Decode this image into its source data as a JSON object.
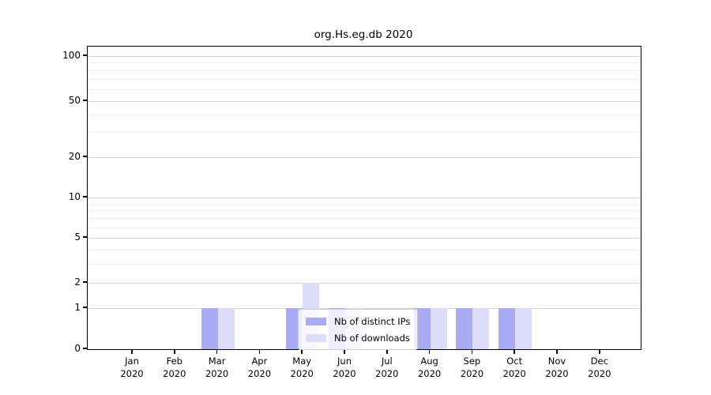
{
  "chart_data": {
    "type": "bar",
    "title": "org.Hs.eg.db 2020",
    "categories": [
      "Jan 2020",
      "Feb 2020",
      "Mar 2020",
      "Apr 2020",
      "May 2020",
      "Jun 2020",
      "Jul 2020",
      "Aug 2020",
      "Sep 2020",
      "Oct 2020",
      "Nov 2020",
      "Dec 2020"
    ],
    "x_tick_months": [
      "Jan",
      "Feb",
      "Mar",
      "Apr",
      "May",
      "Jun",
      "Jul",
      "Aug",
      "Sep",
      "Oct",
      "Nov",
      "Dec"
    ],
    "x_tick_year": "2020",
    "series": [
      {
        "name": "Nb of distinct IPs",
        "color": "#a9abf5",
        "values": [
          0,
          0,
          1,
          0,
          1,
          1,
          0,
          1,
          1,
          1,
          0,
          0
        ]
      },
      {
        "name": "Nb of downloads",
        "color": "#dbddfa",
        "values": [
          0,
          0,
          1,
          0,
          2,
          1,
          0,
          1,
          1,
          1,
          0,
          0
        ]
      }
    ],
    "yscale": "log1p",
    "ylim": [
      0,
      116
    ],
    "y_ticks": [
      0,
      1,
      2,
      5,
      10,
      20,
      50,
      100
    ],
    "y_minor_ticks": [
      3,
      4,
      6,
      7,
      8,
      9,
      30,
      40,
      60,
      70,
      80,
      90
    ],
    "grid": true,
    "legend_position": "inside lower-center"
  },
  "legend": {
    "items": [
      {
        "label": "Nb of distinct IPs",
        "color": "#a9abf5"
      },
      {
        "label": "Nb of downloads",
        "color": "#dbddfa"
      }
    ]
  },
  "colors": {
    "distinct_ips_bar": "#a9abf5",
    "downloads_bar": "#dbddfa",
    "grid_major": "#d2d2d2",
    "grid_minor": "#efefef",
    "axis": "#000000"
  }
}
